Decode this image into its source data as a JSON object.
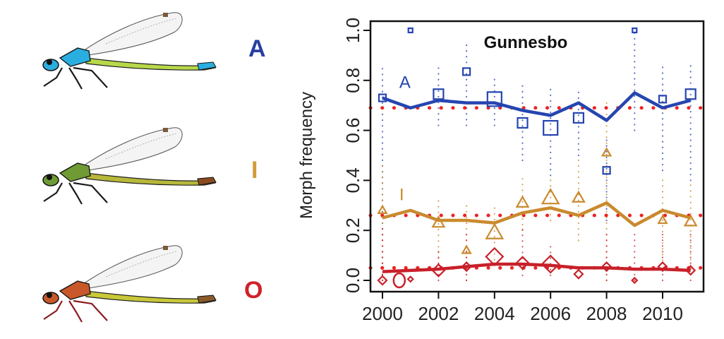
{
  "morphs": [
    {
      "label": "A",
      "color": "#2a3fa0",
      "thorax": "#2aaee0",
      "abdomen": "#b8d84a",
      "tip": "#2aaee0",
      "legs": "#1a1a1a"
    },
    {
      "label": "I",
      "color": "#d49a3a",
      "thorax": "#6f9a34",
      "abdomen": "#b8b83a",
      "tip": "#8a4a20",
      "legs": "#1a1a1a"
    },
    {
      "label": "O",
      "color": "#d0202a",
      "thorax": "#c8582a",
      "abdomen": "#c8c83a",
      "tip": "#8a5a2a",
      "legs": "#8a1a20"
    }
  ],
  "chart_data": {
    "type": "line",
    "title": "Gunnesbo",
    "xlabel": "",
    "ylabel": "Morph frequency",
    "xlim": [
      1999.6,
      2011.5
    ],
    "ylim": [
      -0.05,
      1.03
    ],
    "x_ticks": [
      2000,
      2002,
      2004,
      2006,
      2008,
      2010
    ],
    "x_tick_labels": [
      "2000",
      "2002",
      "2004",
      "2006",
      "2008",
      "2010"
    ],
    "y_ticks": [
      0.0,
      0.2,
      0.4,
      0.6,
      0.8,
      1.0
    ],
    "y_tick_labels": [
      "0.0",
      "0.2",
      "0.4",
      "0.6",
      "0.8",
      "1.0"
    ],
    "grid": false,
    "reference_lines": {
      "color": "#ee2222",
      "values": [
        0.69,
        0.26,
        0.05
      ]
    },
    "series": [
      {
        "name": "A",
        "color": "#2545b0",
        "marker": "square",
        "label_pos": {
          "x": 2000.6,
          "y": 0.77
        },
        "line": {
          "x": [
            2000,
            2001,
            2002,
            2003,
            2004,
            2005,
            2006,
            2007,
            2008,
            2009,
            2010,
            2011
          ],
          "y": [
            0.73,
            0.69,
            0.72,
            0.71,
            0.71,
            0.68,
            0.66,
            0.71,
            0.64,
            0.75,
            0.69,
            0.72
          ]
        },
        "observed": [
          {
            "x": 2000,
            "y": 0.73,
            "size": "small"
          },
          {
            "x": 2001,
            "y": 1.0,
            "size": "tiny"
          },
          {
            "x": 2002,
            "y": 0.745,
            "size": "medium"
          },
          {
            "x": 2003,
            "y": 0.835,
            "size": "small"
          },
          {
            "x": 2004,
            "y": 0.725,
            "size": "large"
          },
          {
            "x": 2005,
            "y": 0.63,
            "size": "medium"
          },
          {
            "x": 2006,
            "y": 0.61,
            "size": "large"
          },
          {
            "x": 2007,
            "y": 0.65,
            "size": "medium"
          },
          {
            "x": 2008,
            "y": 0.44,
            "size": "small"
          },
          {
            "x": 2009,
            "y": 1.0,
            "size": "tiny"
          },
          {
            "x": 2010,
            "y": 0.725,
            "size": "small"
          },
          {
            "x": 2011,
            "y": 0.745,
            "size": "medium"
          }
        ],
        "ci": [
          {
            "x": 2000,
            "lo": 0.0,
            "hi": 0.86
          },
          {
            "x": 2002,
            "lo": 0.62,
            "hi": 0.86
          },
          {
            "x": 2003,
            "lo": 0.62,
            "hi": 0.96
          },
          {
            "x": 2004,
            "lo": 0.62,
            "hi": 0.82
          },
          {
            "x": 2005,
            "lo": 0.48,
            "hi": 0.8
          },
          {
            "x": 2006,
            "lo": 0.42,
            "hi": 0.78
          },
          {
            "x": 2007,
            "lo": 0.5,
            "hi": 0.76
          },
          {
            "x": 2008,
            "lo": 0.24,
            "hi": 0.58
          },
          {
            "x": 2009,
            "lo": 0.6,
            "hi": 1.0
          },
          {
            "x": 2010,
            "lo": 0.44,
            "hi": 0.86
          },
          {
            "x": 2011,
            "lo": 0.4,
            "hi": 0.86
          }
        ]
      },
      {
        "name": "I",
        "color": "#c98a2e",
        "marker": "triangle",
        "label_pos": {
          "x": 2000.6,
          "y": 0.32
        },
        "line": {
          "x": [
            2000,
            2001,
            2002,
            2003,
            2004,
            2005,
            2006,
            2007,
            2008,
            2009,
            2010,
            2011
          ],
          "y": [
            0.25,
            0.28,
            0.24,
            0.24,
            0.23,
            0.27,
            0.29,
            0.26,
            0.31,
            0.22,
            0.28,
            0.25
          ]
        },
        "observed": [
          {
            "x": 2000,
            "y": 0.28,
            "size": "small"
          },
          {
            "x": 2002,
            "y": 0.23,
            "size": "medium"
          },
          {
            "x": 2003,
            "y": 0.12,
            "size": "small"
          },
          {
            "x": 2004,
            "y": 0.19,
            "size": "large"
          },
          {
            "x": 2005,
            "y": 0.31,
            "size": "medium"
          },
          {
            "x": 2006,
            "y": 0.33,
            "size": "large"
          },
          {
            "x": 2007,
            "y": 0.33,
            "size": "medium"
          },
          {
            "x": 2008,
            "y": 0.51,
            "size": "small"
          },
          {
            "x": 2010,
            "y": 0.24,
            "size": "small"
          },
          {
            "x": 2011,
            "y": 0.235,
            "size": "medium"
          }
        ],
        "ci": [
          {
            "x": 2000,
            "lo": 0.0,
            "hi": 0.46
          },
          {
            "x": 2002,
            "lo": 0.02,
            "hi": 0.32
          },
          {
            "x": 2003,
            "lo": 0.0,
            "hi": 0.3
          },
          {
            "x": 2004,
            "lo": 0.06,
            "hi": 0.3
          },
          {
            "x": 2005,
            "lo": 0.2,
            "hi": 0.42
          },
          {
            "x": 2006,
            "lo": 0.24,
            "hi": 0.42
          },
          {
            "x": 2007,
            "lo": 0.16,
            "hi": 0.5
          },
          {
            "x": 2008,
            "lo": 0.0,
            "hi": 0.72
          },
          {
            "x": 2010,
            "lo": 0.08,
            "hi": 0.42
          },
          {
            "x": 2011,
            "lo": 0.06,
            "hi": 0.4
          }
        ]
      },
      {
        "name": "O",
        "color": "#c8202a",
        "marker": "diamond",
        "label_pos": {
          "x": 2000.6,
          "y": 0.0
        },
        "line": {
          "x": [
            2000,
            2001,
            2002,
            2003,
            2004,
            2005,
            2006,
            2007,
            2008,
            2009,
            2010,
            2011
          ],
          "y": [
            0.035,
            0.04,
            0.045,
            0.055,
            0.065,
            0.065,
            0.06,
            0.05,
            0.05,
            0.045,
            0.045,
            0.04
          ]
        },
        "observed": [
          {
            "x": 2000,
            "y": 0.0,
            "size": "small"
          },
          {
            "x": 2001,
            "y": 0.005,
            "size": "tiny"
          },
          {
            "x": 2002,
            "y": 0.04,
            "size": "medium"
          },
          {
            "x": 2003,
            "y": 0.055,
            "size": "small"
          },
          {
            "x": 2004,
            "y": 0.095,
            "size": "large"
          },
          {
            "x": 2005,
            "y": 0.07,
            "size": "medium"
          },
          {
            "x": 2006,
            "y": 0.065,
            "size": "large"
          },
          {
            "x": 2007,
            "y": 0.025,
            "size": "small"
          },
          {
            "x": 2008,
            "y": 0.055,
            "size": "small"
          },
          {
            "x": 2009,
            "y": 0.0,
            "size": "tiny"
          },
          {
            "x": 2010,
            "y": 0.055,
            "size": "small"
          },
          {
            "x": 2011,
            "y": 0.04,
            "size": "small"
          }
        ],
        "ci": [
          {
            "x": 2000,
            "lo": 0.0,
            "hi": 0.22
          },
          {
            "x": 2002,
            "lo": 0.0,
            "hi": 0.12
          },
          {
            "x": 2003,
            "lo": 0.0,
            "hi": 0.2
          },
          {
            "x": 2005,
            "lo": 0.02,
            "hi": 0.22
          },
          {
            "x": 2006,
            "lo": 0.02,
            "hi": 0.14
          },
          {
            "x": 2008,
            "lo": 0.0,
            "hi": 0.2
          },
          {
            "x": 2009,
            "lo": 0.0,
            "hi": 0.2
          },
          {
            "x": 2010,
            "lo": 0.0,
            "hi": 0.2
          },
          {
            "x": 2011,
            "lo": 0.0,
            "hi": 0.2
          }
        ]
      }
    ]
  }
}
